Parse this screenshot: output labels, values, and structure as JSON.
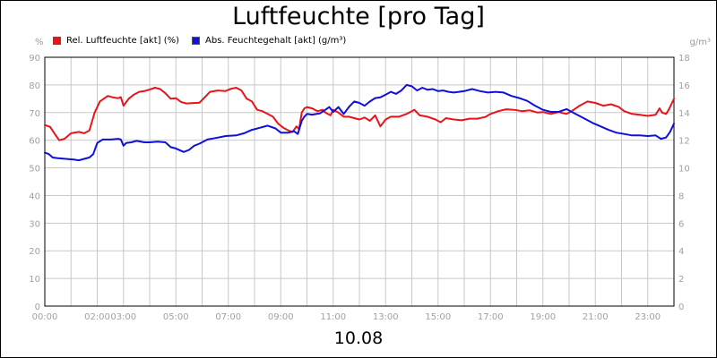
{
  "chart_data": {
    "type": "line",
    "title": "Luftfeuchte [pro Tag]",
    "date": "10.08",
    "y_left": {
      "unit": "%",
      "range": [
        0,
        90
      ],
      "ticks": [
        "0",
        "10",
        "20",
        "30",
        "40",
        "50",
        "60",
        "70",
        "80",
        "90"
      ]
    },
    "y_right": {
      "unit": "g/m³",
      "range": [
        0,
        18
      ],
      "ticks": [
        "0",
        "2",
        "4",
        "6",
        "8",
        "10",
        "12",
        "14",
        "16",
        "18"
      ]
    },
    "x_range": [
      0,
      24
    ],
    "x_ticks": [
      {
        "h": 0,
        "label": "00:00"
      },
      {
        "h": 2,
        "label": "02:00"
      },
      {
        "h": 3,
        "label": "03:00"
      },
      {
        "h": 5,
        "label": "05:00"
      },
      {
        "h": 7,
        "label": "07:00"
      },
      {
        "h": 9,
        "label": "09:00"
      },
      {
        "h": 11,
        "label": "11:00"
      },
      {
        "h": 13,
        "label": "13:00"
      },
      {
        "h": 15,
        "label": "15:00"
      },
      {
        "h": 17,
        "label": "17:00"
      },
      {
        "h": 19,
        "label": "19:00"
      },
      {
        "h": 21,
        "label": "21:00"
      },
      {
        "h": 23,
        "label": "23:00"
      }
    ],
    "grid": true,
    "legend_position": "top-left",
    "series": [
      {
        "name": "Rel. Luftfeuchte [akt] (%)",
        "color": "#e8141a",
        "axis": "left",
        "points": [
          [
            0,
            65.5
          ],
          [
            0.2,
            64.8
          ],
          [
            0.4,
            62
          ],
          [
            0.55,
            60
          ],
          [
            0.75,
            60.5
          ],
          [
            1.0,
            62.5
          ],
          [
            1.3,
            63
          ],
          [
            1.5,
            62.5
          ],
          [
            1.7,
            63.5
          ],
          [
            1.9,
            70
          ],
          [
            2.1,
            74
          ],
          [
            2.25,
            75
          ],
          [
            2.4,
            76
          ],
          [
            2.6,
            75.5
          ],
          [
            2.8,
            75.2
          ],
          [
            2.9,
            75.6
          ],
          [
            3.0,
            72.5
          ],
          [
            3.2,
            75
          ],
          [
            3.4,
            76.5
          ],
          [
            3.6,
            77.5
          ],
          [
            3.8,
            77.8
          ],
          [
            4.0,
            78.3
          ],
          [
            4.2,
            79
          ],
          [
            4.4,
            78.5
          ],
          [
            4.6,
            77
          ],
          [
            4.8,
            75
          ],
          [
            5.0,
            75.2
          ],
          [
            5.2,
            73.8
          ],
          [
            5.4,
            73.3
          ],
          [
            5.6,
            73.4
          ],
          [
            5.9,
            73.6
          ],
          [
            6.1,
            75.5
          ],
          [
            6.3,
            77.5
          ],
          [
            6.6,
            78
          ],
          [
            6.9,
            77.8
          ],
          [
            7.1,
            78.6
          ],
          [
            7.3,
            79
          ],
          [
            7.5,
            78
          ],
          [
            7.7,
            75
          ],
          [
            7.9,
            74
          ],
          [
            8.1,
            71
          ],
          [
            8.3,
            70.5
          ],
          [
            8.5,
            69.5
          ],
          [
            8.7,
            68.5
          ],
          [
            8.9,
            66
          ],
          [
            9.1,
            64.5
          ],
          [
            9.3,
            63.5
          ],
          [
            9.45,
            63
          ],
          [
            9.6,
            65
          ],
          [
            9.7,
            64
          ],
          [
            9.8,
            70
          ],
          [
            9.9,
            71.5
          ],
          [
            10.0,
            72
          ],
          [
            10.2,
            71.5
          ],
          [
            10.4,
            70.5
          ],
          [
            10.6,
            71
          ],
          [
            10.7,
            70
          ],
          [
            10.9,
            69
          ],
          [
            11.0,
            71
          ],
          [
            11.2,
            70
          ],
          [
            11.4,
            68.5
          ],
          [
            11.6,
            68.5
          ],
          [
            11.8,
            68
          ],
          [
            12.0,
            67.5
          ],
          [
            12.2,
            68.2
          ],
          [
            12.4,
            67
          ],
          [
            12.6,
            69
          ],
          [
            12.8,
            65
          ],
          [
            13.0,
            67.5
          ],
          [
            13.2,
            68.5
          ],
          [
            13.5,
            68.5
          ],
          [
            13.8,
            69.5
          ],
          [
            14.0,
            70.5
          ],
          [
            14.1,
            71
          ],
          [
            14.3,
            69
          ],
          [
            14.6,
            68.5
          ],
          [
            14.9,
            67.5
          ],
          [
            15.1,
            66.5
          ],
          [
            15.3,
            68
          ],
          [
            15.6,
            67.5
          ],
          [
            15.9,
            67.2
          ],
          [
            16.2,
            67.8
          ],
          [
            16.5,
            67.8
          ],
          [
            16.8,
            68.4
          ],
          [
            17.0,
            69.5
          ],
          [
            17.3,
            70.5
          ],
          [
            17.6,
            71.2
          ],
          [
            17.9,
            71
          ],
          [
            18.2,
            70.5
          ],
          [
            18.5,
            70.8
          ],
          [
            18.8,
            70
          ],
          [
            19.0,
            70.2
          ],
          [
            19.3,
            69.5
          ],
          [
            19.6,
            70.2
          ],
          [
            19.9,
            69.5
          ],
          [
            20.1,
            70.5
          ],
          [
            20.4,
            72.5
          ],
          [
            20.7,
            74
          ],
          [
            21.0,
            73.5
          ],
          [
            21.3,
            72.5
          ],
          [
            21.6,
            73
          ],
          [
            21.9,
            72
          ],
          [
            22.1,
            70.5
          ],
          [
            22.4,
            69.5
          ],
          [
            22.7,
            69.2
          ],
          [
            23.0,
            68.8
          ],
          [
            23.3,
            69.2
          ],
          [
            23.45,
            71.5
          ],
          [
            23.55,
            70
          ],
          [
            23.7,
            69.5
          ],
          [
            23.8,
            71
          ],
          [
            23.9,
            73
          ],
          [
            24.0,
            75
          ]
        ]
      },
      {
        "name": "Abs. Feuchtegehalt [akt] (g/m³)",
        "color": "#1010d8",
        "axis": "right",
        "points": [
          [
            0,
            11.1
          ],
          [
            0.15,
            11.0
          ],
          [
            0.3,
            10.75
          ],
          [
            0.5,
            10.7
          ],
          [
            0.8,
            10.65
          ],
          [
            1.1,
            10.6
          ],
          [
            1.3,
            10.55
          ],
          [
            1.5,
            10.65
          ],
          [
            1.7,
            10.75
          ],
          [
            1.85,
            11.0
          ],
          [
            2.0,
            11.8
          ],
          [
            2.2,
            12.05
          ],
          [
            2.5,
            12.05
          ],
          [
            2.8,
            12.1
          ],
          [
            2.9,
            12.05
          ],
          [
            3.0,
            11.6
          ],
          [
            3.1,
            11.8
          ],
          [
            3.3,
            11.85
          ],
          [
            3.5,
            11.95
          ],
          [
            3.8,
            11.85
          ],
          [
            4.0,
            11.85
          ],
          [
            4.3,
            11.9
          ],
          [
            4.6,
            11.85
          ],
          [
            4.8,
            11.5
          ],
          [
            5.0,
            11.4
          ],
          [
            5.3,
            11.15
          ],
          [
            5.5,
            11.3
          ],
          [
            5.7,
            11.6
          ],
          [
            5.9,
            11.75
          ],
          [
            6.2,
            12.05
          ],
          [
            6.5,
            12.15
          ],
          [
            6.9,
            12.3
          ],
          [
            7.3,
            12.35
          ],
          [
            7.6,
            12.5
          ],
          [
            7.9,
            12.75
          ],
          [
            8.2,
            12.9
          ],
          [
            8.5,
            13.05
          ],
          [
            8.8,
            12.85
          ],
          [
            9.0,
            12.55
          ],
          [
            9.3,
            12.55
          ],
          [
            9.5,
            12.65
          ],
          [
            9.65,
            12.45
          ],
          [
            9.8,
            13.4
          ],
          [
            9.9,
            13.7
          ],
          [
            10.0,
            13.9
          ],
          [
            10.2,
            13.85
          ],
          [
            10.5,
            13.95
          ],
          [
            10.7,
            14.2
          ],
          [
            10.85,
            14.4
          ],
          [
            11.0,
            14.05
          ],
          [
            11.2,
            14.4
          ],
          [
            11.4,
            13.9
          ],
          [
            11.6,
            14.4
          ],
          [
            11.8,
            14.8
          ],
          [
            12.0,
            14.7
          ],
          [
            12.2,
            14.5
          ],
          [
            12.4,
            14.8
          ],
          [
            12.6,
            15.05
          ],
          [
            12.8,
            15.1
          ],
          [
            13.0,
            15.3
          ],
          [
            13.2,
            15.5
          ],
          [
            13.4,
            15.35
          ],
          [
            13.6,
            15.6
          ],
          [
            13.8,
            16.0
          ],
          [
            14.0,
            15.9
          ],
          [
            14.2,
            15.6
          ],
          [
            14.4,
            15.8
          ],
          [
            14.6,
            15.65
          ],
          [
            14.8,
            15.7
          ],
          [
            15.0,
            15.55
          ],
          [
            15.2,
            15.6
          ],
          [
            15.4,
            15.5
          ],
          [
            15.6,
            15.45
          ],
          [
            15.8,
            15.5
          ],
          [
            16.0,
            15.55
          ],
          [
            16.3,
            15.7
          ],
          [
            16.6,
            15.55
          ],
          [
            16.9,
            15.45
          ],
          [
            17.2,
            15.5
          ],
          [
            17.5,
            15.45
          ],
          [
            17.8,
            15.2
          ],
          [
            18.1,
            15.05
          ],
          [
            18.4,
            14.85
          ],
          [
            18.7,
            14.5
          ],
          [
            19.0,
            14.2
          ],
          [
            19.3,
            14.05
          ],
          [
            19.6,
            14.05
          ],
          [
            19.9,
            14.25
          ],
          [
            20.1,
            14.05
          ],
          [
            20.3,
            13.85
          ],
          [
            20.6,
            13.55
          ],
          [
            20.9,
            13.25
          ],
          [
            21.2,
            13.0
          ],
          [
            21.5,
            12.75
          ],
          [
            21.8,
            12.55
          ],
          [
            22.1,
            12.45
          ],
          [
            22.4,
            12.35
          ],
          [
            22.7,
            12.35
          ],
          [
            23.0,
            12.3
          ],
          [
            23.3,
            12.35
          ],
          [
            23.5,
            12.1
          ],
          [
            23.7,
            12.2
          ],
          [
            23.85,
            12.6
          ],
          [
            24.0,
            13.2
          ]
        ]
      }
    ]
  }
}
